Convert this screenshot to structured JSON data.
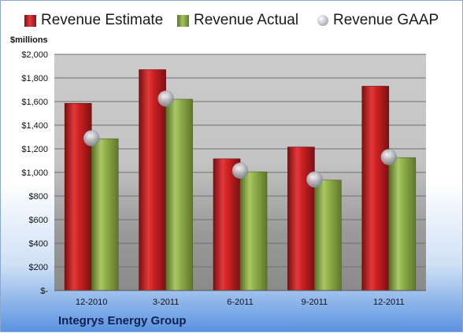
{
  "legend": {
    "estimate": "Revenue Estimate",
    "actual": "Revenue Actual",
    "gaap": "Revenue GAAP"
  },
  "units_label": "$millions",
  "company": "Integrys Energy Group",
  "colors": {
    "estimate": "#c8181c",
    "actual": "#8fae48",
    "gaap": "#c0c4cc"
  },
  "chart_data": {
    "type": "bar",
    "categories": [
      "12-2010",
      "3-2011",
      "6-2011",
      "9-2011",
      "12-2011"
    ],
    "series": [
      {
        "name": "Revenue Estimate",
        "values": [
          1585,
          1870,
          1115,
          1215,
          1730
        ]
      },
      {
        "name": "Revenue Actual",
        "values": [
          1285,
          1620,
          1005,
          935,
          1125
        ]
      },
      {
        "name": "Revenue GAAP",
        "values": [
          1290,
          1625,
          1015,
          940,
          1130
        ]
      }
    ],
    "ylabel": "$millions",
    "ylim": [
      0,
      2000
    ],
    "yticks": [
      0,
      200,
      400,
      600,
      800,
      1000,
      1200,
      1400,
      1600,
      1800,
      2000
    ],
    "yticklabels": [
      "$-",
      "$200",
      "$400",
      "$600",
      "$800",
      "$1,000",
      "$1,200",
      "$1,400",
      "$1,600",
      "$1,800",
      "$2,000"
    ],
    "grid": true,
    "legend_position": "top"
  }
}
